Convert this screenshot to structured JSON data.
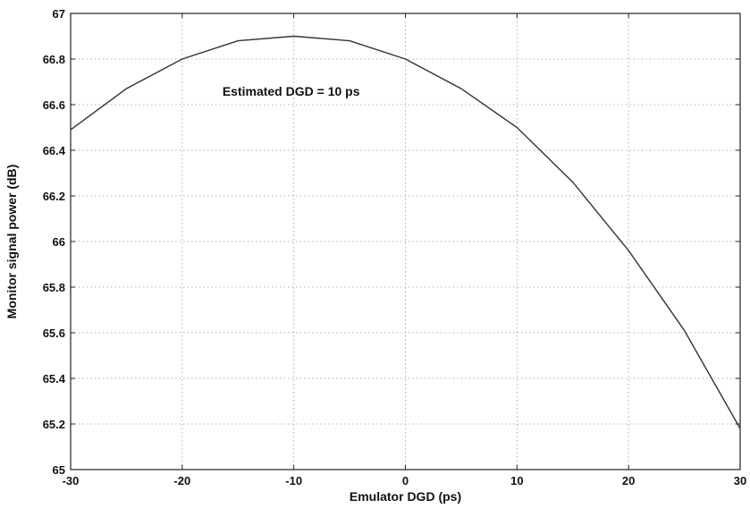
{
  "chart_data": {
    "type": "line",
    "xlabel": "Emulator DGD (ps)",
    "ylabel": "Monitor signal power (dB)",
    "xlim": [
      -30,
      30
    ],
    "ylim": [
      65,
      67
    ],
    "xticks": [
      -30,
      -20,
      -10,
      0,
      10,
      20,
      30
    ],
    "yticks": [
      65,
      65.2,
      65.4,
      65.6,
      65.8,
      66,
      66.2,
      66.4,
      66.6,
      66.8,
      67
    ],
    "grid": true,
    "annotation": {
      "text": "Estimated DGD = 10 ps",
      "x": -10,
      "y": 66.64
    },
    "series": [
      {
        "color": "#333333",
        "x": [
          -30,
          -25,
          -20,
          -15,
          -10,
          -5,
          0,
          5,
          10,
          15,
          20,
          25,
          30
        ],
        "y": [
          66.49,
          66.67,
          66.8,
          66.88,
          66.9,
          66.88,
          66.8,
          66.67,
          66.5,
          66.26,
          65.96,
          65.61,
          65.18
        ]
      }
    ]
  }
}
